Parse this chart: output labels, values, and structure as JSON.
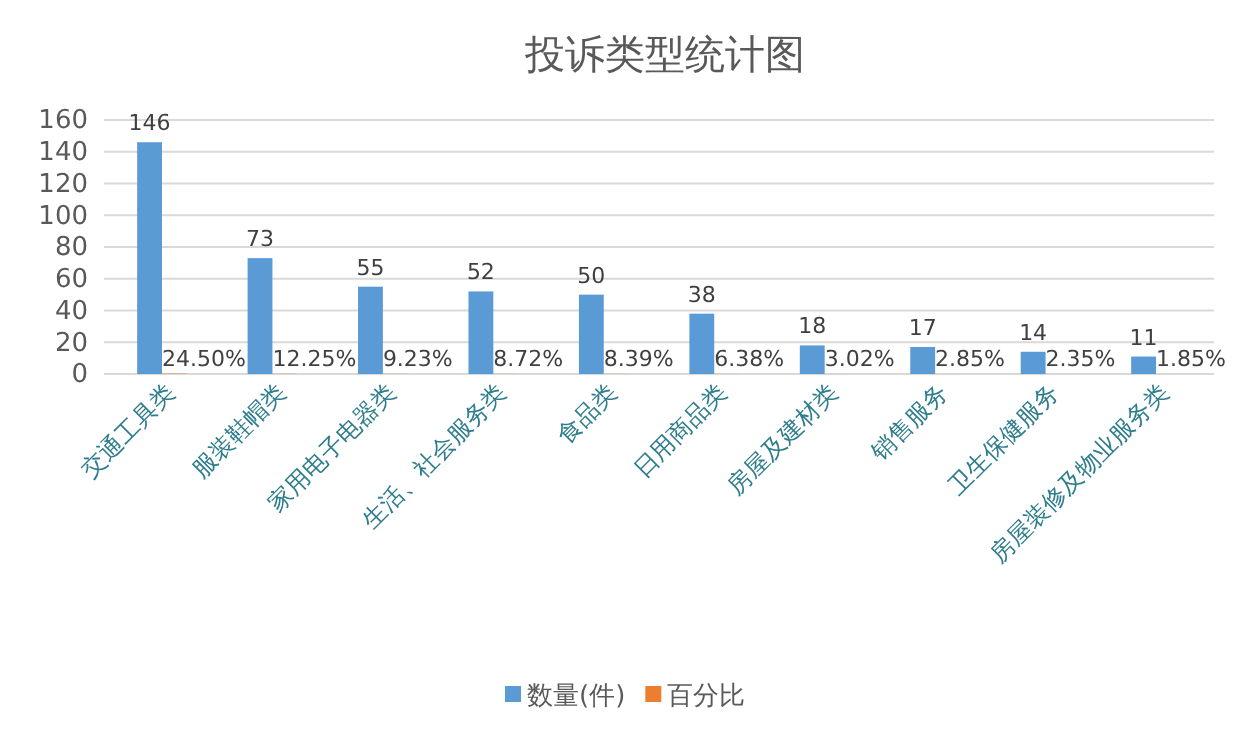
{
  "chart_data": {
    "type": "bar",
    "title": "投诉类型统计图",
    "categories": [
      "交通工具类",
      "服装鞋帽类",
      "家用电子电器类",
      "生活、社会服务类",
      "食品类",
      "日用商品类",
      "房屋及建材类",
      "销售服务",
      "卫生保健服务",
      "房屋装修及物业服务类"
    ],
    "series": [
      {
        "name": "数量(件)",
        "color": "#5b9bd5",
        "values": [
          146,
          73,
          55,
          52,
          50,
          38,
          18,
          17,
          14,
          11
        ],
        "value_labels": [
          "146",
          "73",
          "55",
          "52",
          "50",
          "38",
          "18",
          "17",
          "14",
          "11"
        ]
      },
      {
        "name": "百分比",
        "color": "#ed7d31",
        "values": [
          0.245,
          0.1225,
          0.0923,
          0.0872,
          0.0839,
          0.0638,
          0.0302,
          0.0285,
          0.0235,
          0.0185
        ],
        "value_labels": [
          "24.50%",
          "12.25%",
          "9.23%",
          "8.72%",
          "8.39%",
          "6.38%",
          "3.02%",
          "2.85%",
          "2.35%",
          "1.85%"
        ]
      }
    ],
    "ylim": [
      0,
      160
    ],
    "yticks": [
      0,
      20,
      40,
      60,
      80,
      100,
      120,
      140,
      160
    ],
    "grid": "y",
    "legend": "bottom"
  }
}
